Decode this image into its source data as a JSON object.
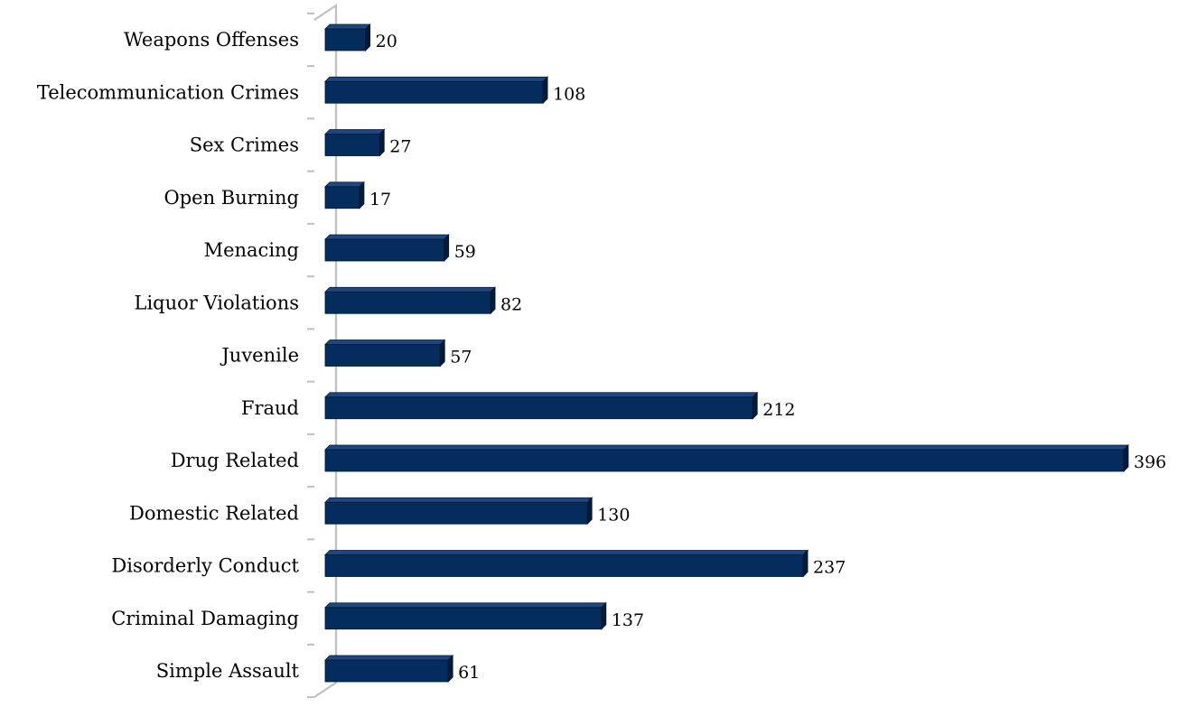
{
  "chart_data": {
    "type": "bar",
    "orientation": "horizontal",
    "style": "3d",
    "categories": [
      "Weapons Offenses",
      "Telecommunication Crimes",
      "Sex Crimes",
      "Open Burning",
      "Menacing",
      "Liquor Violations",
      "Juvenile",
      "Fraud",
      "Drug Related",
      "Domestic Related",
      "Disorderly Conduct",
      "Criminal Damaging",
      "Simple Assault"
    ],
    "values": [
      20,
      108,
      27,
      17,
      59,
      82,
      57,
      212,
      396,
      130,
      237,
      137,
      61
    ],
    "data_labels": [
      "20",
      "108",
      "27",
      "17",
      "59",
      "82",
      "57",
      "212",
      "396",
      "130",
      "237",
      "137",
      "61"
    ],
    "title": "",
    "xlabel": "",
    "ylabel": "",
    "xlim": [
      0,
      396
    ],
    "grid": false,
    "legend": "none",
    "colors": {
      "bar_front": "#042d5e",
      "bar_top": "#1c4780",
      "bar_side": "#021a3b",
      "bar_outline": "#01152f",
      "axis_wall": "#bfbfbf",
      "label_text": "#000000"
    }
  }
}
